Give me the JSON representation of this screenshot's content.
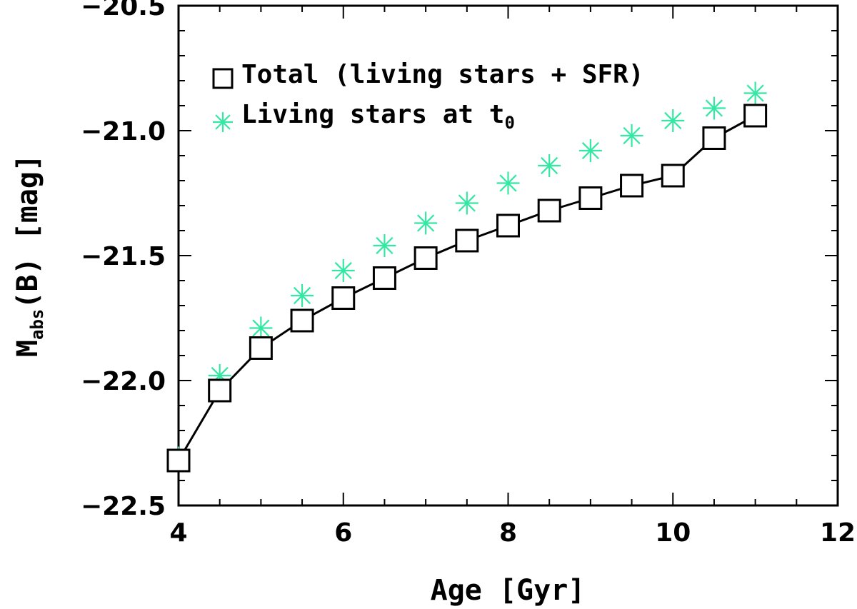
{
  "chart_data": {
    "type": "line",
    "xlabel": "Age [Gyr]",
    "ylabel": {
      "main": "M",
      "subscript": "abs",
      "rest": "(B) [mag]"
    },
    "xlim": [
      4,
      12
    ],
    "ylim": [
      -22.5,
      -20.5
    ],
    "y_inverted": true,
    "x_ticks": [
      4,
      6,
      8,
      10,
      12
    ],
    "x_tick_labels": [
      "4",
      "6",
      "8",
      "10",
      "12"
    ],
    "y_ticks": [
      -20.5,
      -21.0,
      -21.5,
      -22.0,
      -22.5
    ],
    "y_tick_labels": [
      "−20.5",
      "−21.0",
      "−21.5",
      "−22.0",
      "−22.5"
    ],
    "series": [
      {
        "name": "Total (living stars + SFR)",
        "marker": "square",
        "line": true,
        "color": "#000000",
        "x": [
          4.0,
          4.5,
          5.0,
          5.5,
          6.0,
          6.5,
          7.0,
          7.5,
          8.0,
          8.5,
          9.0,
          9.5,
          10.0,
          10.5,
          11.0
        ],
        "y": [
          -22.32,
          -22.04,
          -21.87,
          -21.76,
          -21.67,
          -21.59,
          -21.51,
          -21.44,
          -21.38,
          -21.32,
          -21.27,
          -21.22,
          -21.18,
          -21.03,
          -20.94
        ]
      },
      {
        "name": "Living stars at t",
        "name_subscript": "0",
        "marker": "asterisk",
        "line": false,
        "color": "#33e8a3",
        "x": [
          4.0,
          4.5,
          5.0,
          5.5,
          6.0,
          6.5,
          7.0,
          7.5,
          8.0,
          8.5,
          9.0,
          9.5,
          10.0,
          10.5,
          11.0
        ],
        "y": [
          -22.31,
          -21.98,
          -21.79,
          -21.66,
          -21.56,
          -21.46,
          -21.37,
          -21.29,
          -21.21,
          -21.14,
          -21.08,
          -21.02,
          -20.96,
          -20.91,
          -20.85
        ]
      }
    ],
    "legend_position": "top-left"
  }
}
